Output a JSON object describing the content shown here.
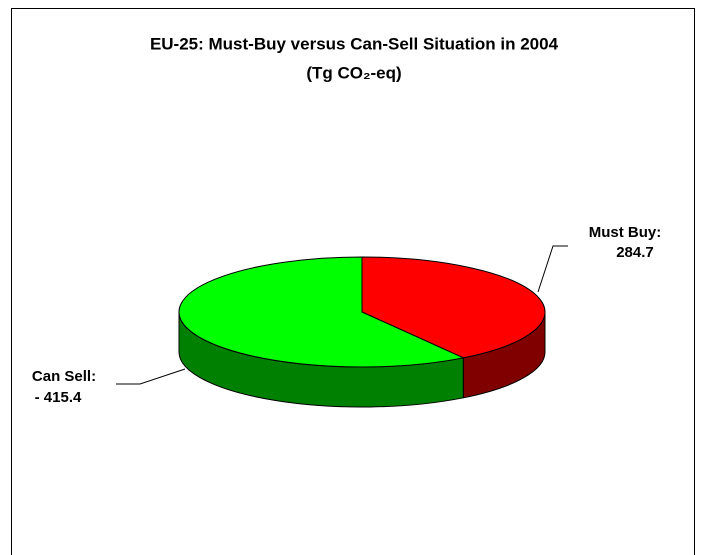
{
  "chart_data": {
    "type": "pie",
    "title": "EU-25: Must-Buy versus Can-Sell Situation in 2004",
    "subtitle": "(Tg CO₂-eq)",
    "categories": [
      "Must Buy:",
      "Can Sell:"
    ],
    "values": [
      284.7,
      -415.4
    ],
    "value_labels": [
      "284.7",
      "- 415.4"
    ],
    "colors": [
      "#ff0000",
      "#00ff00"
    ],
    "side_colors": [
      "#800000",
      "#008000"
    ]
  }
}
